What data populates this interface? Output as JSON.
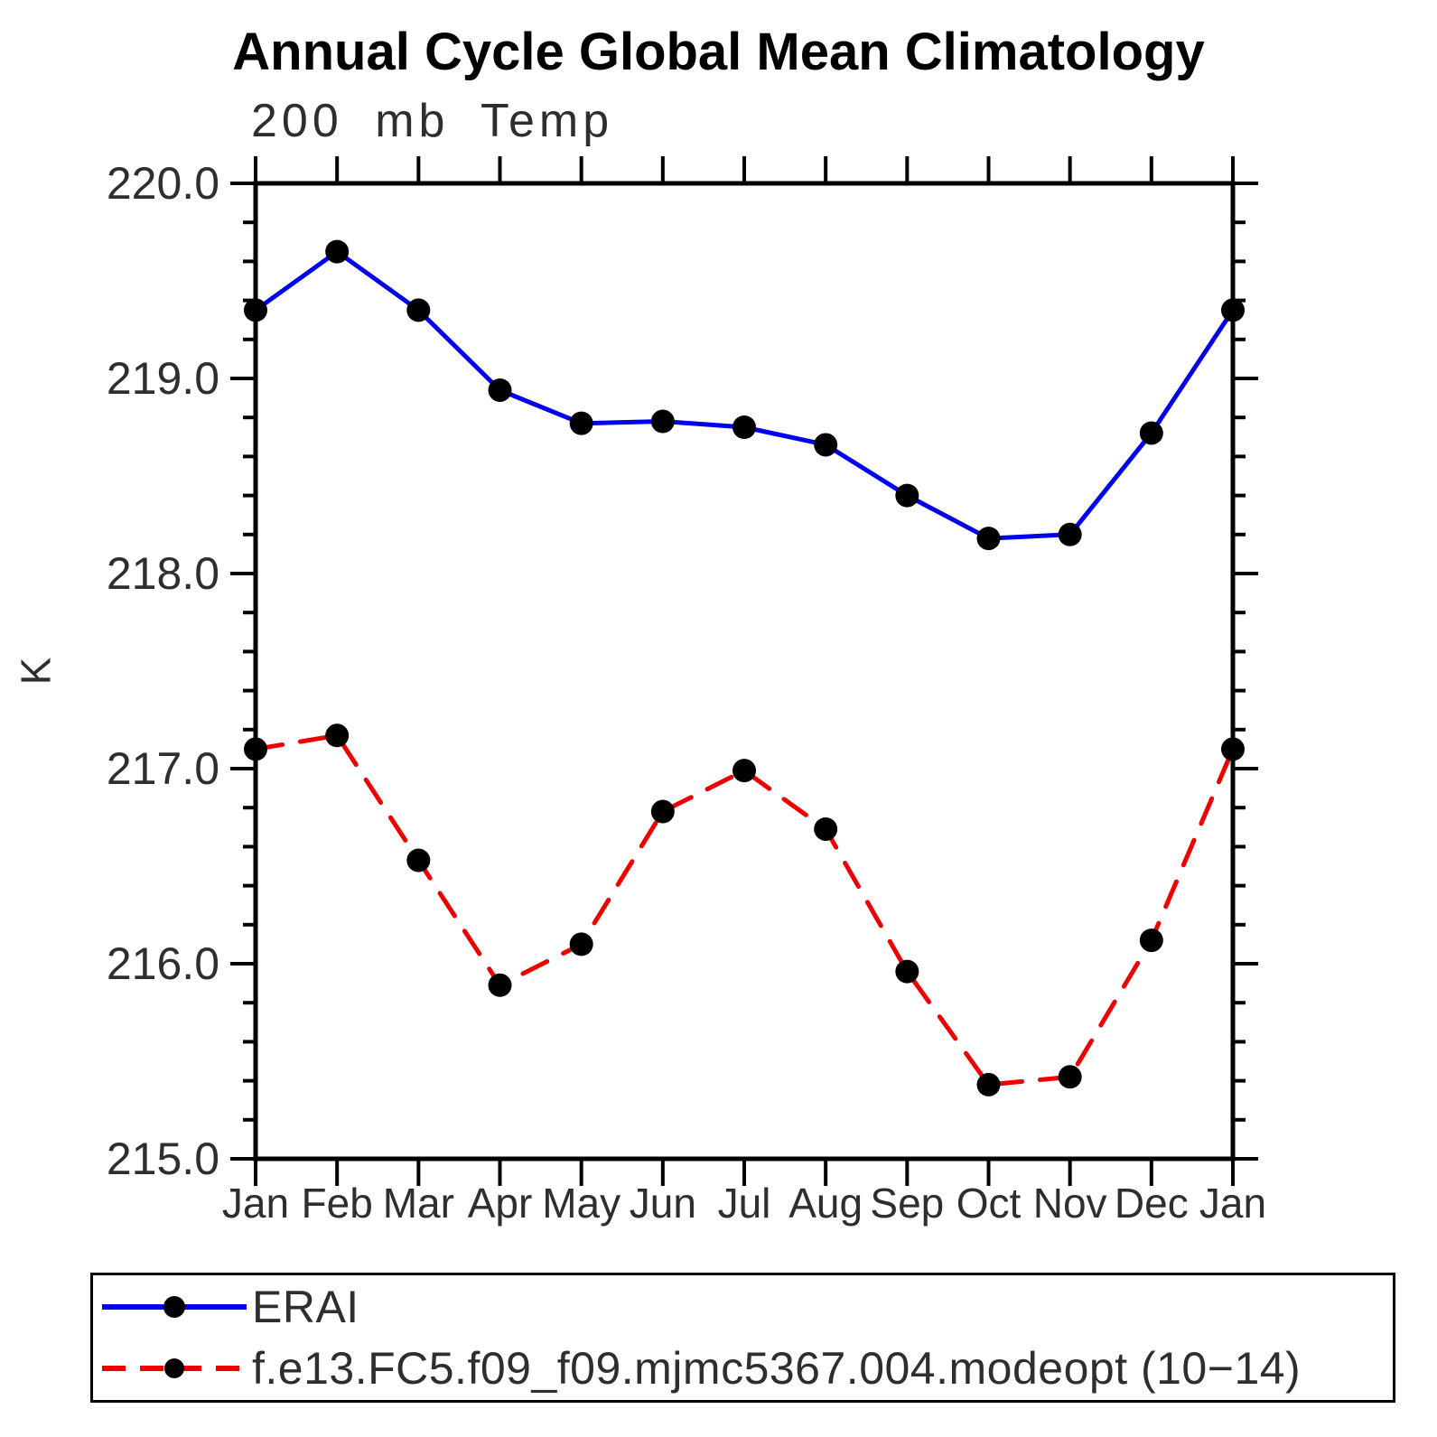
{
  "colors": {
    "axis": "#000000",
    "tick_text": "#2e2e2e",
    "erai_line": "#0000ee",
    "model_line": "#ee0000",
    "marker": "#000000",
    "background": "#ffffff"
  },
  "chart_data": {
    "type": "line",
    "title": "Annual Cycle Global Mean Climatology",
    "subtitle": "200 mb Temp",
    "xlabel": "",
    "ylabel": "K",
    "categories": [
      "Jan",
      "Feb",
      "Mar",
      "Apr",
      "May",
      "Jun",
      "Jul",
      "Aug",
      "Sep",
      "Oct",
      "Nov",
      "Dec",
      "Jan"
    ],
    "ylim": [
      215.0,
      220.0
    ],
    "ytick_labels": [
      "215.0",
      "216.0",
      "217.0",
      "218.0",
      "219.0",
      "220.0"
    ],
    "minor_tick_interval": 0.2,
    "grid": false,
    "legend_position": "bottom-left-box",
    "series": [
      {
        "name": "ERAI",
        "color": "#0000ee",
        "line_style": "solid",
        "marker": "circle",
        "marker_color": "#000000",
        "values": [
          219.35,
          219.65,
          219.35,
          218.94,
          218.77,
          218.78,
          218.75,
          218.66,
          218.4,
          218.18,
          218.2,
          218.72,
          219.35
        ]
      },
      {
        "name": "f.e13.FC5.f09_f09.mjmc5367.004.modeopt (10−14)",
        "color": "#ee0000",
        "line_style": "dashed",
        "marker": "circle",
        "marker_color": "#000000",
        "values": [
          217.1,
          217.17,
          216.53,
          215.89,
          216.1,
          216.78,
          216.99,
          216.69,
          215.96,
          215.38,
          215.42,
          216.12,
          217.1
        ]
      }
    ]
  }
}
